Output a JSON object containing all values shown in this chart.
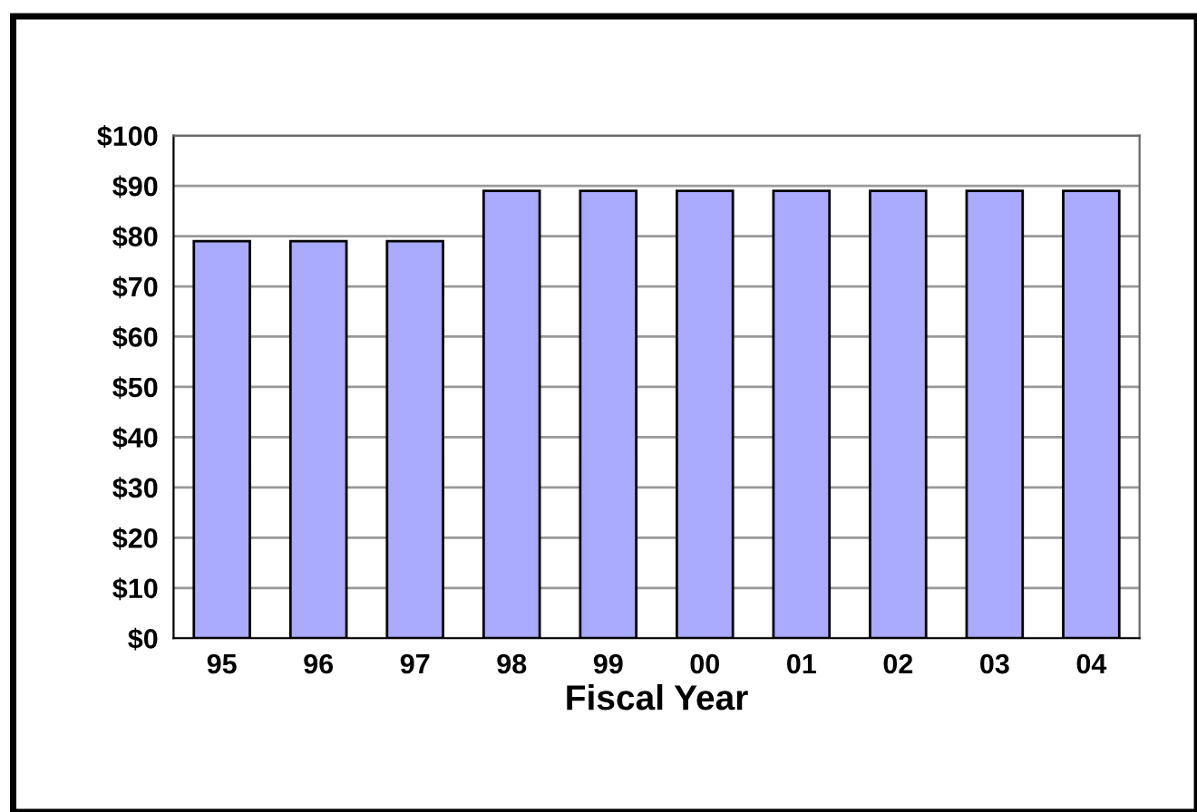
{
  "chart_data": {
    "type": "bar",
    "xlabel": "Fiscal Year",
    "categories": [
      "95",
      "96",
      "97",
      "98",
      "99",
      "00",
      "01",
      "02",
      "03",
      "04"
    ],
    "values": [
      79,
      79,
      79,
      89,
      89,
      89,
      89,
      89,
      89,
      89
    ],
    "color": "#aaaaff",
    "ylim": [
      0,
      100
    ],
    "yticks": [
      {
        "value": 0,
        "label": "$0"
      },
      {
        "value": 10,
        "label": "$10"
      },
      {
        "value": 20,
        "label": "$20"
      },
      {
        "value": 30,
        "label": "$30"
      },
      {
        "value": 40,
        "label": "$40"
      },
      {
        "value": 50,
        "label": "$50"
      },
      {
        "value": 60,
        "label": "$60"
      },
      {
        "value": 70,
        "label": "$70"
      },
      {
        "value": 80,
        "label": "$80"
      },
      {
        "value": 90,
        "label": "$90"
      },
      {
        "value": 100,
        "label": "$100"
      }
    ],
    "grid": "y"
  }
}
